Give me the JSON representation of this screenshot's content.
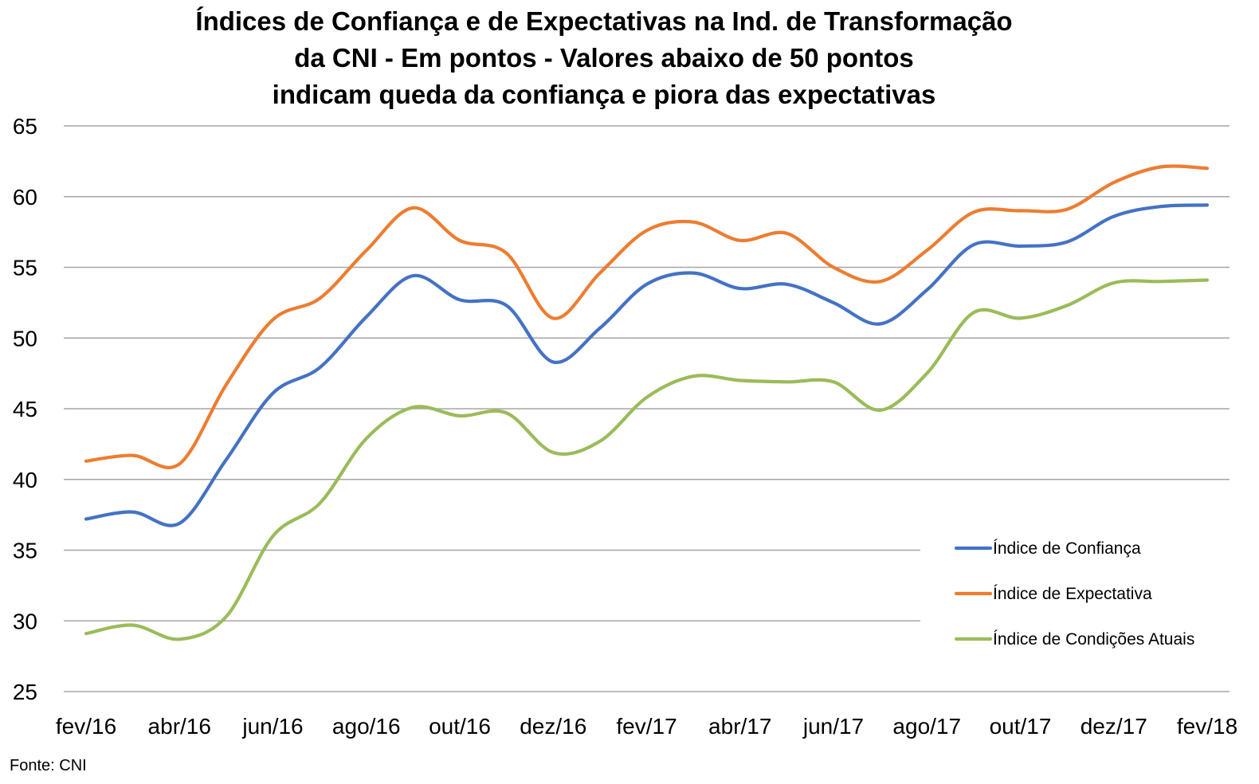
{
  "source": "Fonte: CNI",
  "chart_data": {
    "type": "line",
    "title_lines": [
      "Índices de Confiança e de Expectativas na Ind. de Transformação",
      "da CNI - Em pontos - Valores abaixo de 50 pontos",
      "indicam queda da confiança e piora das expectativas"
    ],
    "xlabel": "",
    "ylabel": "",
    "x": [
      "fev/16",
      "mar/16",
      "abr/16",
      "mai/16",
      "jun/16",
      "jul/16",
      "ago/16",
      "set/16",
      "out/16",
      "nov/16",
      "dez/16",
      "jan/17",
      "fev/17",
      "mar/17",
      "abr/17",
      "mai/17",
      "jun/17",
      "jul/17",
      "ago/17",
      "set/17",
      "out/17",
      "nov/17",
      "dez/17",
      "jan/18",
      "fev/18"
    ],
    "x_tick_labels": [
      "fev/16",
      "abr/16",
      "jun/16",
      "ago/16",
      "out/16",
      "dez/16",
      "fev/17",
      "abr/17",
      "jun/17",
      "ago/17",
      "out/17",
      "dez/17",
      "fev/18"
    ],
    "ylim": [
      25,
      65
    ],
    "y_ticks": [
      25,
      30,
      35,
      40,
      45,
      50,
      55,
      60,
      65
    ],
    "grid": true,
    "legend_position": "right",
    "series": [
      {
        "name": "Índice de Confiança",
        "color": "#4472C4",
        "values": [
          37.2,
          37.7,
          36.9,
          41.4,
          46.1,
          47.9,
          51.5,
          54.4,
          52.7,
          52.3,
          48.3,
          50.7,
          53.8,
          54.6,
          53.5,
          53.8,
          52.5,
          51.0,
          53.4,
          56.6,
          56.5,
          56.8,
          58.6,
          59.3,
          59.4
        ]
      },
      {
        "name": "Índice de Expectativa",
        "color": "#ED7D31",
        "values": [
          41.3,
          41.7,
          41.1,
          46.7,
          51.3,
          52.8,
          56.2,
          59.2,
          56.9,
          56.0,
          51.4,
          54.6,
          57.6,
          58.2,
          56.9,
          57.4,
          55.0,
          54.0,
          56.2,
          58.9,
          59.0,
          59.1,
          61.0,
          62.1,
          62.0
        ]
      },
      {
        "name": "Índice de Condições Atuais",
        "color": "#9BBB59",
        "values": [
          29.1,
          29.7,
          28.7,
          30.3,
          36.0,
          38.3,
          42.9,
          45.1,
          44.5,
          44.7,
          41.9,
          42.7,
          45.8,
          47.3,
          47.0,
          46.9,
          46.9,
          44.9,
          47.5,
          51.8,
          51.4,
          52.3,
          53.9,
          54.0,
          54.1
        ]
      }
    ]
  }
}
